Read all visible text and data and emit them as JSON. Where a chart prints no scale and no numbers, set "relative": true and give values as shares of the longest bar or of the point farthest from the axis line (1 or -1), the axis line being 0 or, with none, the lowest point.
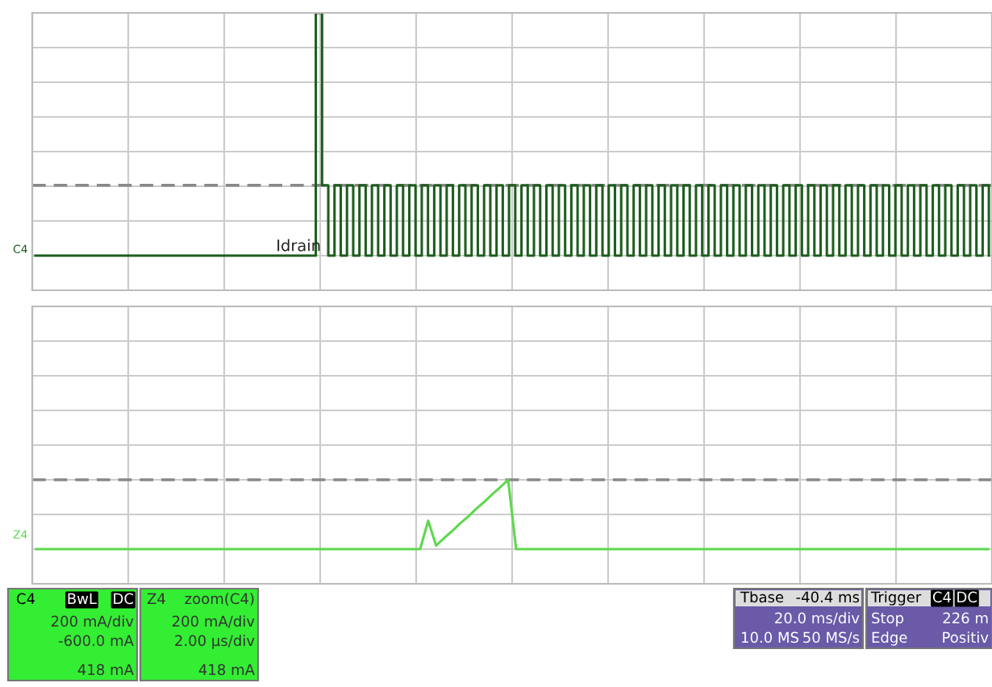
{
  "chart_data": [
    {
      "type": "step",
      "relative": true,
      "grid": true,
      "legend": false,
      "tick_labels": false,
      "categories": [
        null,
        null,
        null,
        null,
        null,
        null,
        null,
        null,
        null,
        null,
        null,
        null,
        null,
        null,
        null,
        null,
        null,
        null,
        null,
        null,
        null,
        null,
        null,
        null,
        null,
        null,
        null,
        null,
        null,
        null,
        null,
        null,
        null,
        null,
        null,
        null,
        null,
        null,
        null,
        null,
        null,
        null,
        null,
        null,
        null,
        null,
        null,
        null,
        null,
        null,
        null,
        null,
        null,
        null,
        null,
        null,
        null,
        null,
        null,
        null,
        null,
        null,
        null,
        null,
        null,
        null,
        null,
        null,
        null,
        null,
        null,
        null,
        null,
        null,
        null,
        null,
        null,
        null,
        null,
        null,
        null,
        null,
        null,
        null,
        null,
        null,
        null,
        null,
        null,
        null,
        null,
        null,
        null,
        null,
        null,
        null,
        null,
        null,
        null,
        null,
        null,
        null,
        null,
        null,
        null,
        null,
        null,
        null,
        null,
        null,
        null,
        null,
        null,
        null,
        null,
        null,
        null,
        null,
        null,
        null,
        null,
        null,
        null,
        null,
        null,
        null,
        null,
        null,
        null,
        null,
        null,
        null,
        null,
        null,
        null,
        null,
        null,
        null,
        null,
        null,
        null,
        null,
        null,
        null,
        null,
        null,
        null,
        null,
        null,
        null,
        null,
        null,
        null,
        null
      ],
      "series": [
        {
          "color": "#1e5e1e",
          "values": [
            0,
            0,
            0,
            0,
            0,
            0,
            0,
            0,
            0,
            0,
            0,
            0,
            0,
            0,
            0,
            0,
            0,
            0,
            0,
            0,
            0,
            0,
            0,
            0,
            0,
            0,
            0,
            0,
            0,
            0,
            0,
            0,
            0,
            0,
            0,
            0,
            0,
            0,
            0,
            0,
            0,
            0,
            0,
            0,
            0,
            1,
            0.29,
            0,
            0.29,
            0,
            0.29,
            0,
            0.29,
            0,
            0.29,
            0,
            0.29,
            0,
            0.29,
            0,
            0.29,
            0,
            0.29,
            0,
            0.29,
            0,
            0.29,
            0,
            0.29,
            0,
            0.29,
            0,
            0.29,
            0,
            0.29,
            0,
            0.29,
            0,
            0.29,
            0,
            0.29,
            0,
            0.29,
            0,
            0.29,
            0,
            0.29,
            0,
            0.29,
            0,
            0.29,
            0,
            0.29,
            0,
            0.29,
            0,
            0.29,
            0,
            0.29,
            0,
            0.29,
            0,
            0.29,
            0,
            0.29,
            0,
            0.29,
            0,
            0.29,
            0,
            0.29,
            0,
            0.29,
            0,
            0.29,
            0,
            0.29,
            0,
            0.29,
            0,
            0.29,
            0,
            0.29,
            0,
            0.29,
            0,
            0.29,
            0,
            0.29,
            0,
            0.29,
            0,
            0.29,
            0,
            0.29,
            0,
            0.29,
            0,
            0.29,
            0,
            0.29,
            0,
            0.29,
            0,
            0.29,
            0,
            0.29,
            0,
            0.29,
            0,
            0.29,
            0,
            0.29,
            0
          ]
        }
      ],
      "ref_lines": [
        {
          "axis": "y",
          "value": 0.29,
          "color": "#888888",
          "line_style": "dashed"
        }
      ],
      "annotations": [
        "Idrain",
        "C4"
      ]
    },
    {
      "type": "line",
      "relative": true,
      "grid": true,
      "legend": false,
      "tick_labels": false,
      "categories": [
        null,
        null,
        null,
        null,
        null,
        null,
        null,
        null,
        null,
        null,
        null,
        null,
        null,
        null,
        null,
        null,
        null,
        null,
        null,
        null,
        null,
        null,
        null,
        null,
        null,
        null,
        null,
        null,
        null,
        null,
        null,
        null,
        null,
        null,
        null,
        null,
        null,
        null,
        null,
        null,
        null,
        null,
        null,
        null,
        null,
        null,
        null,
        null,
        null,
        null,
        null,
        null,
        null,
        null,
        null,
        null,
        null,
        null,
        null,
        null,
        null,
        null,
        null,
        null,
        null,
        null,
        null,
        null,
        null,
        null,
        null,
        null,
        null,
        null,
        null,
        null,
        null,
        null,
        null,
        null,
        null,
        null,
        null,
        null,
        null,
        null,
        null,
        null,
        null,
        null,
        null,
        null,
        null,
        null,
        null,
        null,
        null,
        null,
        null,
        null,
        null,
        null,
        null,
        null,
        null,
        null,
        null,
        null,
        null,
        null,
        null,
        null,
        null,
        null,
        null,
        null,
        null,
        null,
        null,
        null
      ],
      "series": [
        {
          "color": "#5ed84e",
          "values": [
            0,
            0,
            0,
            0,
            0,
            0,
            0,
            0,
            0,
            0,
            0,
            0,
            0,
            0,
            0,
            0,
            0,
            0,
            0,
            0,
            0,
            0,
            0,
            0,
            0,
            0,
            0,
            0,
            0,
            0,
            0,
            0,
            0,
            0,
            0,
            0,
            0,
            0,
            0,
            0,
            0,
            0,
            0,
            0,
            0,
            0,
            0,
            0,
            0,
            0.41,
            0.05,
            0.16,
            0.26,
            0.37,
            0.47,
            0.58,
            0.68,
            0.79,
            0.89,
            1,
            0,
            0,
            0,
            0,
            0,
            0,
            0,
            0,
            0,
            0,
            0,
            0,
            0,
            0,
            0,
            0,
            0,
            0,
            0,
            0,
            0,
            0,
            0,
            0,
            0,
            0,
            0,
            0,
            0,
            0,
            0,
            0,
            0,
            0,
            0,
            0,
            0,
            0,
            0,
            0,
            0,
            0,
            0,
            0,
            0,
            0,
            0,
            0,
            0,
            0,
            0,
            0,
            0,
            0,
            0,
            0,
            0,
            0,
            0,
            0
          ]
        }
      ],
      "ref_lines": [
        {
          "axis": "y",
          "value": 1,
          "color": "#888888",
          "line_style": "dashed"
        }
      ],
      "annotations": [
        "Z4"
      ]
    },
    {
      "type": "other",
      "annotations": [
        "C4",
        "BwL",
        "DC",
        "200 mA/div",
        "-600.0 mA",
        "418 mA",
        "Z4",
        "zoom(C4)",
        "200 mA/div",
        "2.00 µs/div",
        "418 mA",
        "Tbase",
        "-40.4 ms",
        "20.0 ms/div",
        "10.0 MS",
        "50 MS/s",
        "Trigger",
        "C4",
        "DC",
        "Stop",
        "226 m",
        "Edge",
        "Positiv"
      ]
    }
  ]
}
